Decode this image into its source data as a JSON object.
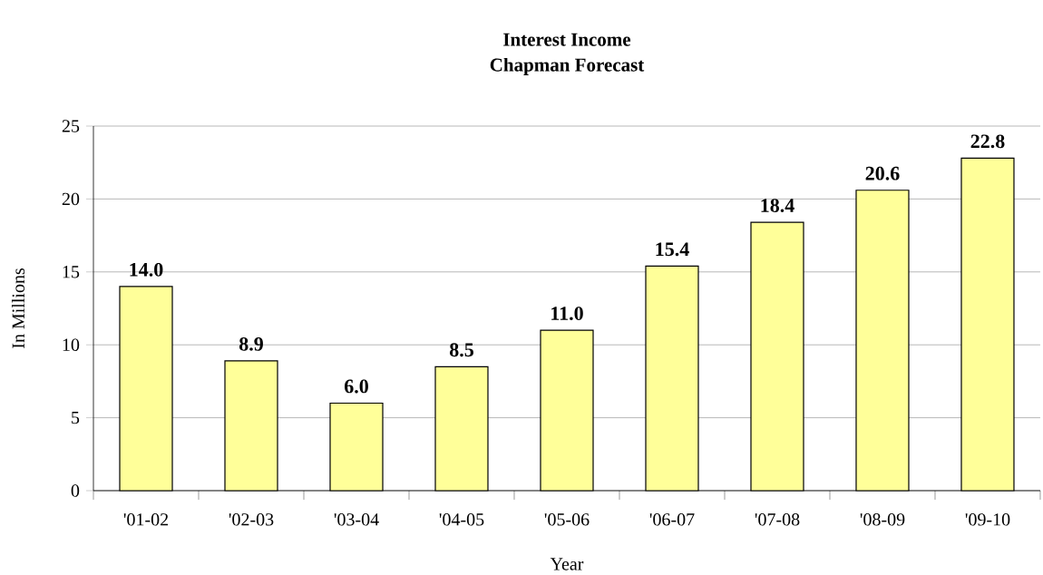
{
  "chart_data": {
    "type": "bar",
    "title": "Interest Income",
    "subtitle": "Chapman Forecast",
    "xlabel": "Year",
    "ylabel": "In Millions",
    "categories": [
      "'01-02",
      "'02-03",
      "'03-04",
      "'04-05",
      "'05-06",
      "'06-07",
      "'07-08",
      "'08-09",
      "'09-10"
    ],
    "values": [
      14.0,
      8.9,
      6.0,
      8.5,
      11.0,
      15.4,
      18.4,
      20.6,
      22.8
    ],
    "value_labels": [
      "14.0",
      "8.9",
      "6.0",
      "8.5",
      "11.0",
      "15.4",
      "18.4",
      "20.6",
      "22.8"
    ],
    "color": "#ffff99",
    "ylim": [
      0,
      25
    ],
    "yticks": [
      0,
      5,
      10,
      15,
      20,
      25
    ],
    "grid": "y"
  }
}
